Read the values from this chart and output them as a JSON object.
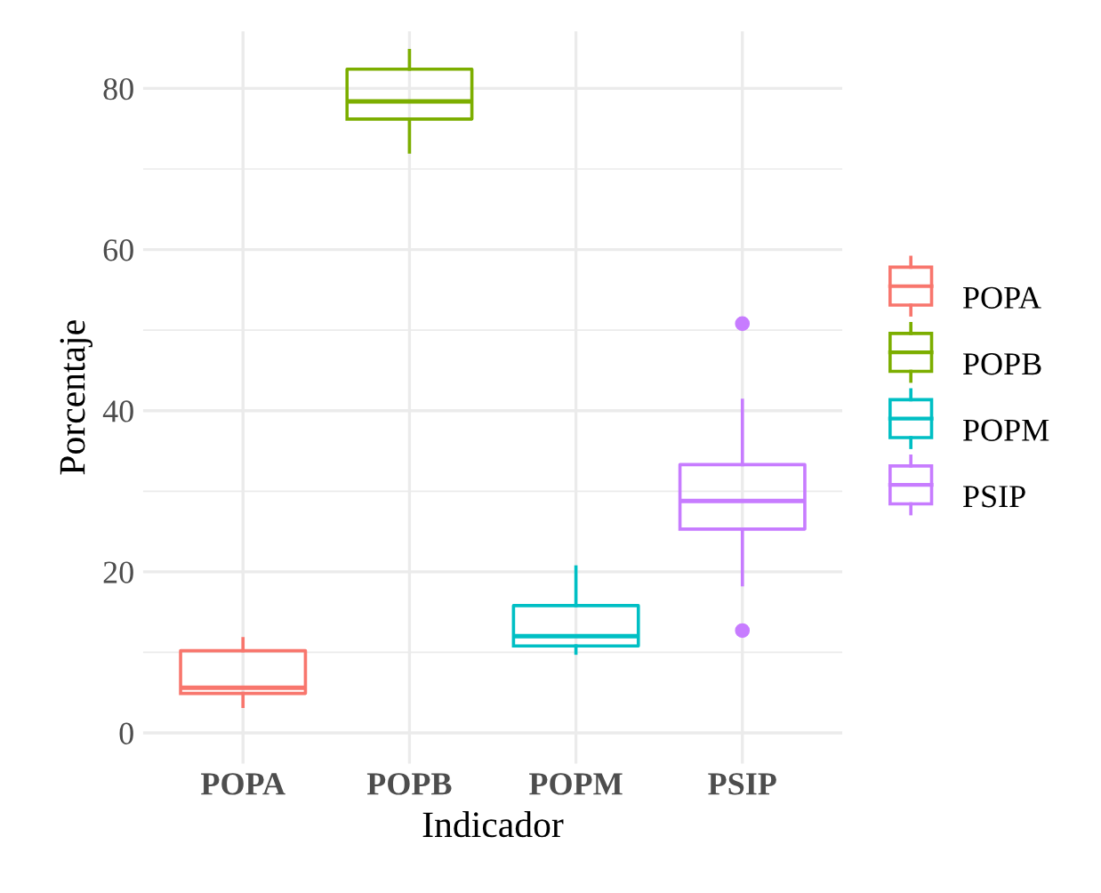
{
  "chart_data": {
    "type": "box",
    "xlabel": "Indicador",
    "ylabel": "Porcentaje",
    "categories": [
      "POPA",
      "POPB",
      "POPM",
      "PSIP"
    ],
    "series": [
      {
        "name": "POPA",
        "color": "#f8766d",
        "boxes": [
          {
            "low": 3.3,
            "q1": 4.9,
            "median": 5.6,
            "q3": 10.2,
            "high": 11.7
          },
          null,
          null,
          null
        ]
      },
      {
        "name": "POPB",
        "color": "#7cae00",
        "boxes": [
          null,
          {
            "low": 72.1,
            "q1": 76.2,
            "median": 78.4,
            "q3": 82.4,
            "high": 84.7
          },
          null,
          null
        ]
      },
      {
        "name": "POPM",
        "color": "#00bfc4",
        "boxes": [
          null,
          null,
          {
            "low": 9.9,
            "q1": 10.8,
            "median": 12.0,
            "q3": 15.8,
            "high": 20.6
          },
          null
        ]
      },
      {
        "name": "PSIP",
        "color": "#c77cff",
        "boxes": [
          null,
          null,
          null,
          {
            "low": 18.4,
            "q1": 25.3,
            "median": 28.8,
            "q3": 33.3,
            "high": 41.3,
            "outliers": [
              12.7,
              50.8
            ]
          }
        ]
      }
    ],
    "ylim": [
      -3.8,
      87.1
    ],
    "yticks": [
      0,
      20,
      40,
      60,
      80
    ],
    "grid": true,
    "legend": "right"
  }
}
